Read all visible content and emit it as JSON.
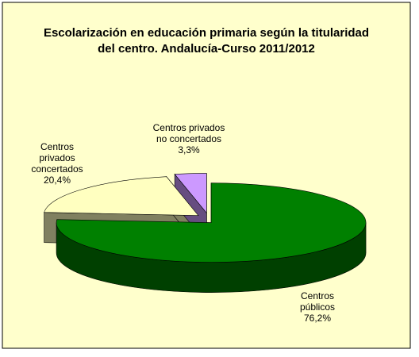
{
  "chart_data": {
    "type": "pie3d",
    "title": "Escolarización en educación primaria según la titularidad del centro. Andalucía-Curso 2011/2012",
    "categories": [
      "Centros públicos",
      "Centros privados concertados",
      "Centros privados no concertados"
    ],
    "values": [
      76.2,
      20.4,
      3.3
    ],
    "value_labels": [
      "76,2%",
      "20,4%",
      "3,3%"
    ],
    "colors": [
      "#008000",
      "#FFFFC0",
      "#CC99FF"
    ]
  }
}
